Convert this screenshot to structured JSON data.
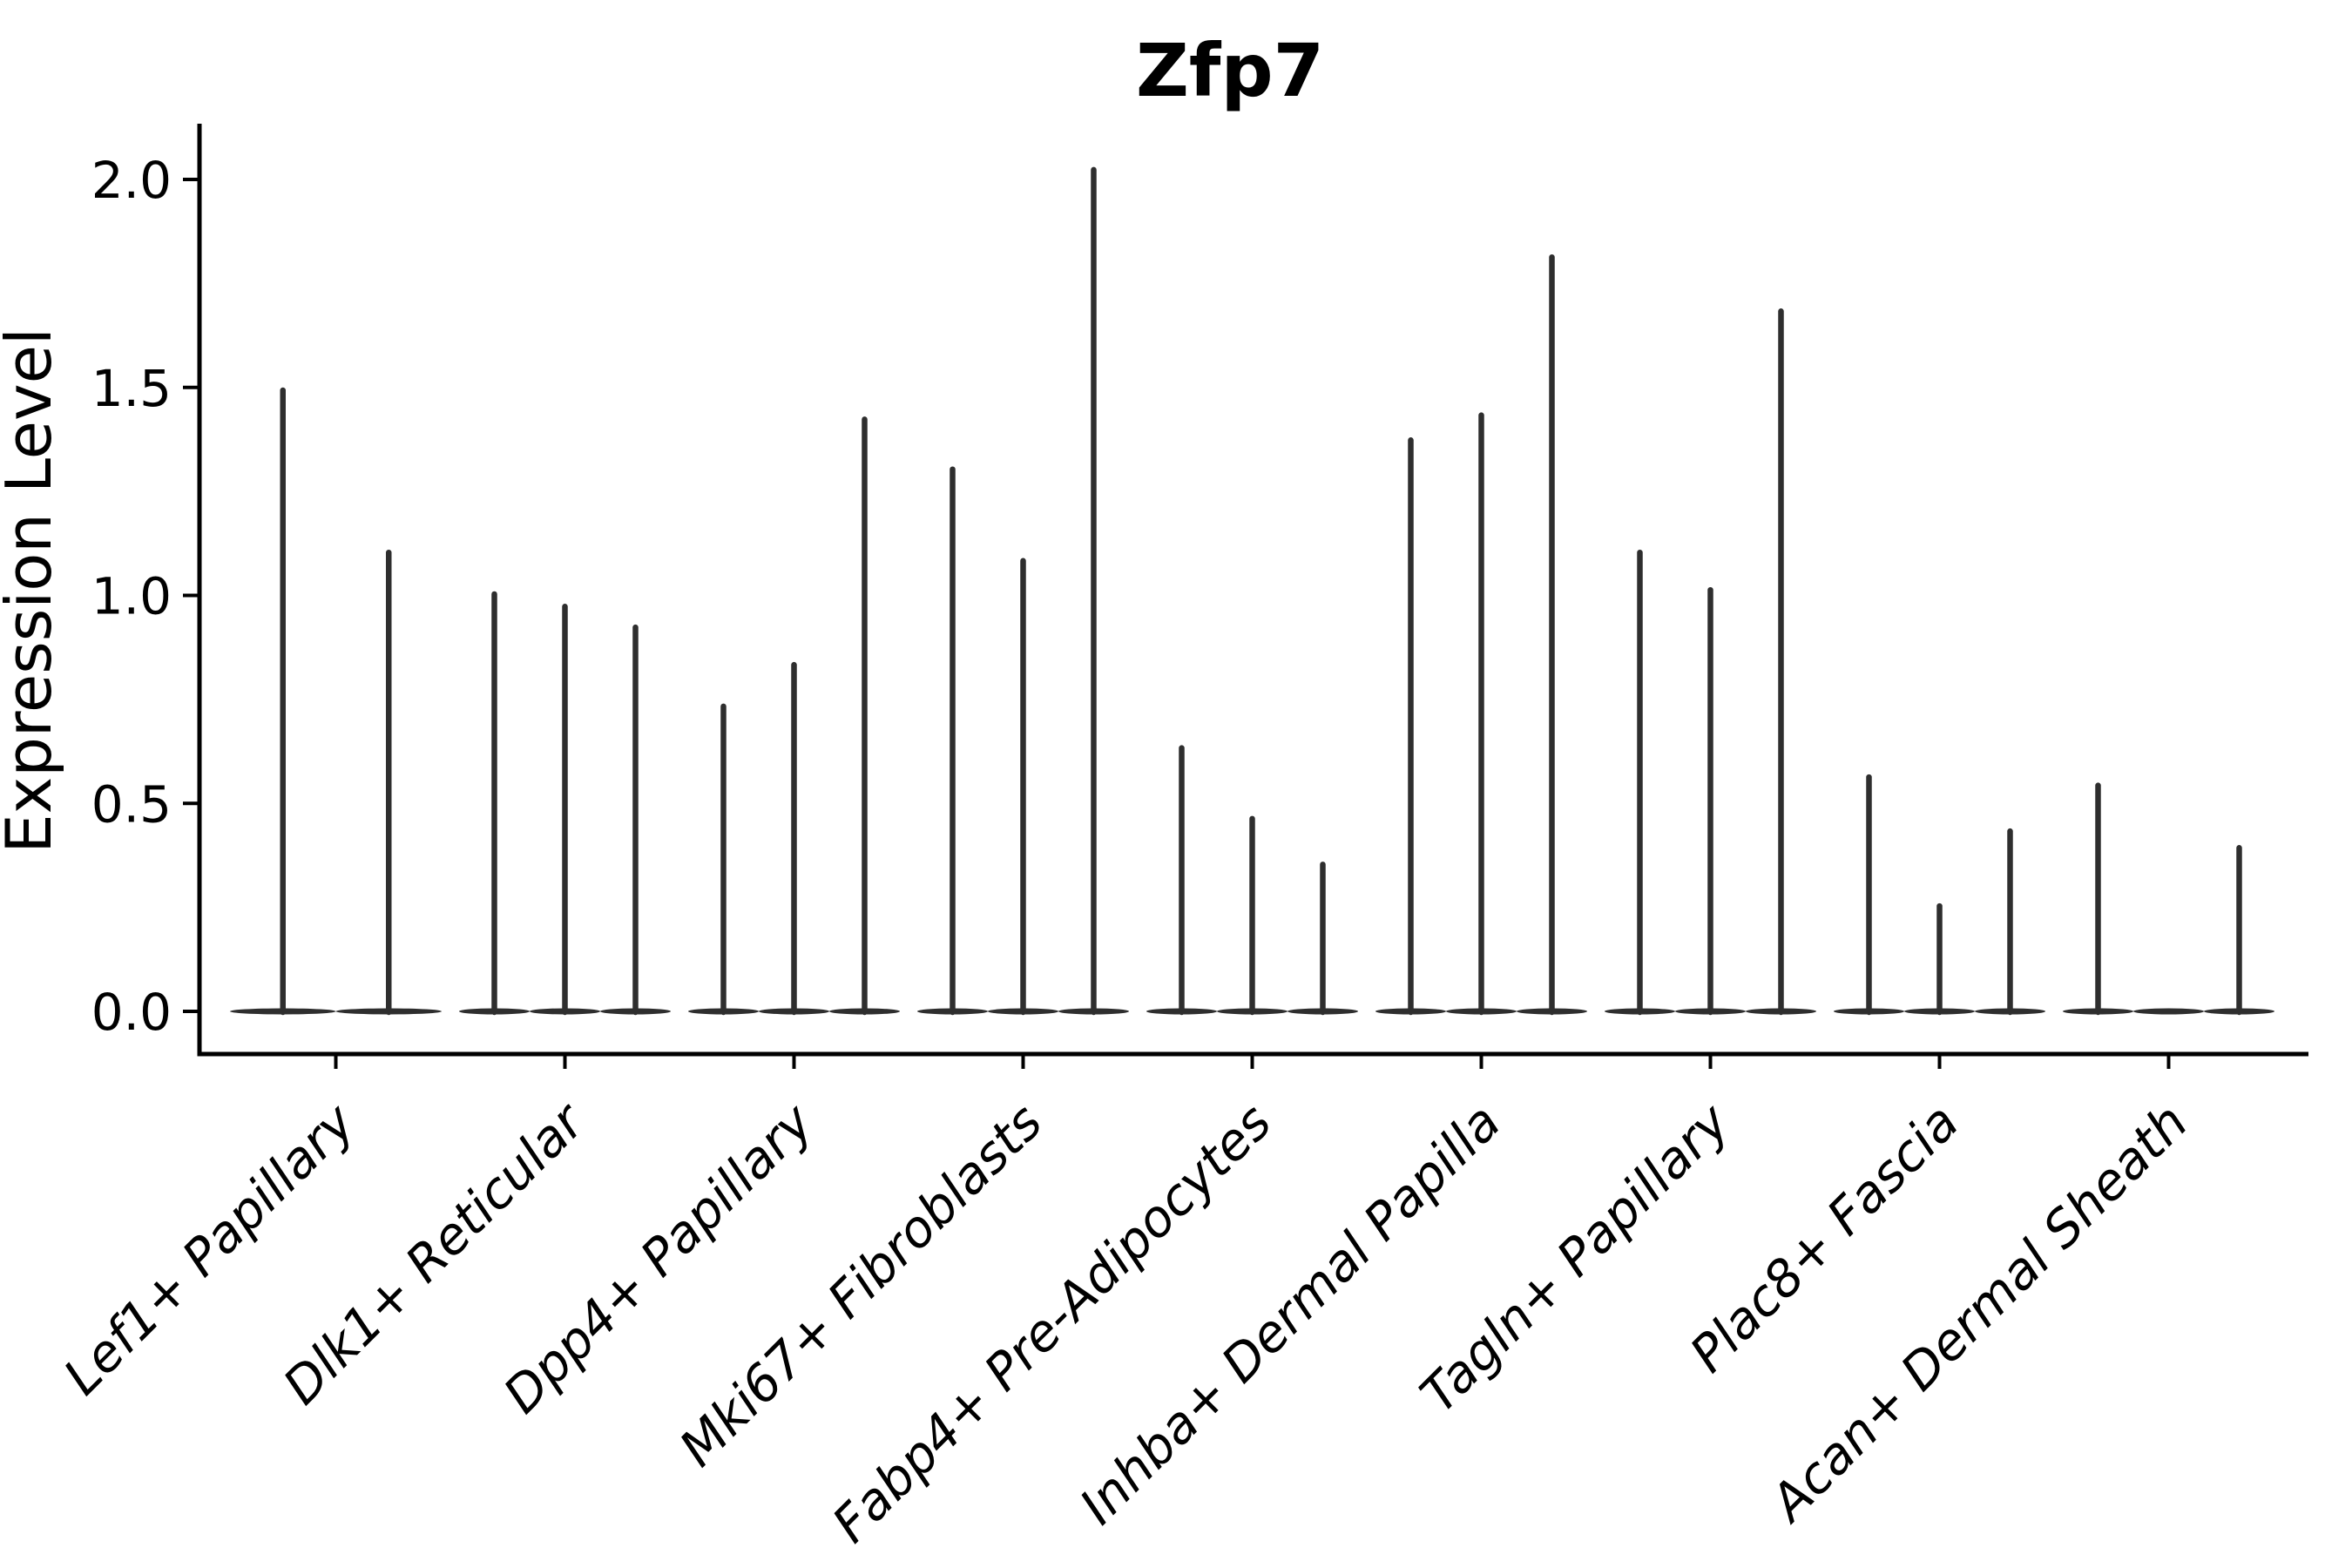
{
  "chart_data": {
    "type": "violin",
    "title": "Zfp7",
    "xlabel": "",
    "ylabel": "Expression Level",
    "ylim": [
      -0.1,
      2.13
    ],
    "y_ticks": [
      "0.0",
      "0.5",
      "1.0",
      "1.5",
      "2.0"
    ],
    "grid": false,
    "legend": null,
    "categories": [
      "Lef1+ Papillary",
      "Dlk1+ Reticular",
      "Dpp4+ Papillary",
      "Mki67+ Fibroblasts",
      "Fabp4+ Pre-Adipocytes",
      "Inhba+ Dermal Papilla",
      "Tagln+ Papillary",
      "Plac8+ Fascia",
      "Acan+ Dermal Sheath"
    ],
    "groups": [
      {
        "label": "Lef1+ Papillary",
        "violin_max": [
          1.5,
          1.11
        ]
      },
      {
        "label": "Dlk1+ Reticular",
        "violin_max": [
          1.01,
          0.98,
          0.93
        ]
      },
      {
        "label": "Dpp4+ Papillary",
        "violin_max": [
          0.74,
          0.84,
          1.43
        ]
      },
      {
        "label": "Mki67+ Fibroblasts",
        "violin_max": [
          1.31,
          1.09,
          2.03
        ]
      },
      {
        "label": "Fabp4+ Pre-Adipocytes",
        "violin_max": [
          0.64,
          0.47,
          0.36
        ]
      },
      {
        "label": "Inhba+ Dermal Papilla",
        "violin_max": [
          1.38,
          1.44,
          1.82
        ]
      },
      {
        "label": "Tagln+ Papillary",
        "violin_max": [
          1.11,
          1.02,
          1.69
        ]
      },
      {
        "label": "Plac8+ Fascia",
        "violin_max": [
          0.57,
          0.26,
          0.44
        ]
      },
      {
        "label": "Acan+ Dermal Sheath",
        "violin_max": [
          0.55,
          0.0,
          0.4
        ]
      }
    ],
    "colors": {
      "violin": "#2e2e2e",
      "axis": "#000000",
      "text": "#000000",
      "background": "#ffffff"
    }
  }
}
